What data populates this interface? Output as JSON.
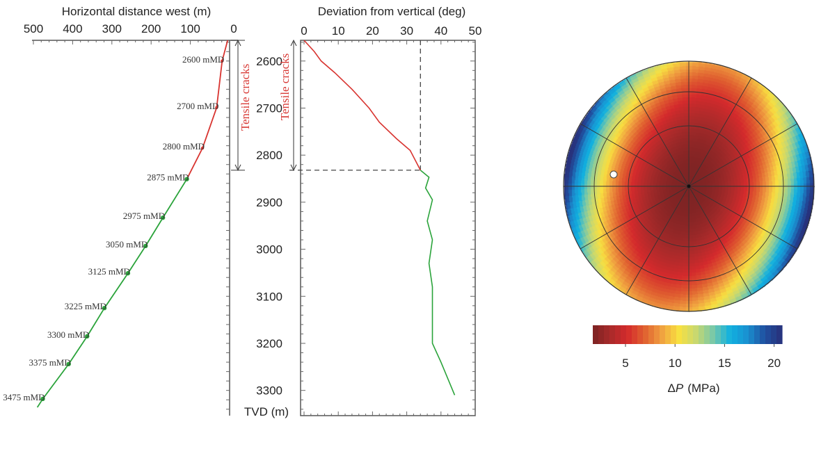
{
  "chart_data": [
    {
      "type": "line",
      "xlabel": "Horizontal distance west (m)",
      "xlim": [
        500,
        0
      ],
      "xticks": [
        "500",
        "400",
        "300",
        "200",
        "100",
        "0"
      ],
      "ylim": [
        2556,
        3355
      ],
      "y_inverted": true,
      "grid": false,
      "annotation": "Tensile cracks",
      "annotation_range_tvd": [
        2556,
        2832
      ],
      "series": [
        {
          "color": "#d8332f",
          "points": [
            [
              5,
              2556
            ],
            [
              19,
              2600
            ],
            [
              33,
              2699
            ],
            [
              69,
              2785
            ],
            [
              109,
              2851
            ]
          ]
        },
        {
          "color": "#2aa33a",
          "points": [
            [
              109,
              2851
            ],
            [
              170,
              2933
            ],
            [
              214,
              2993
            ],
            [
              259,
              3051
            ],
            [
              319,
              3125
            ],
            [
              363,
              3185
            ],
            [
              410,
              3244
            ],
            [
              476,
              3318
            ],
            [
              490,
              3336
            ]
          ]
        }
      ],
      "markers": [
        {
          "label": "2600  mMD",
          "x": 19,
          "y": 2600,
          "color": "#d8332f"
        },
        {
          "label": "2700 mMD",
          "x": 33,
          "y": 2699,
          "color": "#d8332f"
        },
        {
          "label": "2800  mMD",
          "x": 69,
          "y": 2785,
          "color": "#d8332f"
        },
        {
          "label": "2875  mMD",
          "x": 109,
          "y": 2851,
          "color": "#2aa33a"
        },
        {
          "label": "2975  mMD",
          "x": 170,
          "y": 2933,
          "color": "#2aa33a"
        },
        {
          "label": "3050  mMD",
          "x": 214,
          "y": 2993,
          "color": "#2aa33a"
        },
        {
          "label": "3125 mMD",
          "x": 259,
          "y": 3051,
          "color": "#2aa33a"
        },
        {
          "label": "3225 mMD",
          "x": 319,
          "y": 3125,
          "color": "#2aa33a"
        },
        {
          "label": "3300  mMD",
          "x": 363,
          "y": 3185,
          "color": "#2aa33a"
        },
        {
          "label": "3375  mMD",
          "x": 410,
          "y": 3244,
          "color": "#2aa33a"
        },
        {
          "label": "3475 mMD",
          "x": 476,
          "y": 3318,
          "color": "#2aa33a"
        }
      ]
    },
    {
      "type": "line",
      "xlabel": "Deviation from vertical (deg)",
      "ylabel": "TVD (m)",
      "xlim": [
        0,
        50
      ],
      "xticks": [
        "0",
        "10",
        "20",
        "30",
        "40",
        "50"
      ],
      "ylim": [
        2556,
        3355
      ],
      "y_inverted": true,
      "yticks": [
        "2600",
        "2700",
        "2800",
        "2900",
        "3000",
        "3100",
        "3200",
        "3300"
      ],
      "grid": false,
      "annotation": "Tensile cracks",
      "dashed_reference": {
        "deviation": 34,
        "tvd": 2832
      },
      "series": [
        {
          "color": "#d8332f",
          "points": [
            [
              0,
              2556
            ],
            [
              3,
              2580
            ],
            [
              5,
              2600
            ],
            [
              9,
              2625
            ],
            [
              14,
              2660
            ],
            [
              19,
              2700
            ],
            [
              22,
              2730
            ],
            [
              27,
              2765
            ],
            [
              31,
              2790
            ],
            [
              34,
              2832
            ]
          ]
        },
        {
          "color": "#2aa33a",
          "points": [
            [
              34,
              2832
            ],
            [
              36.5,
              2847
            ],
            [
              35.5,
              2870
            ],
            [
              37.5,
              2895
            ],
            [
              36,
              2940
            ],
            [
              37.5,
              2980
            ],
            [
              36.5,
              3030
            ],
            [
              37.5,
              3080
            ],
            [
              37.5,
              3130
            ],
            [
              37.5,
              3200
            ],
            [
              40,
              3240
            ],
            [
              44,
              3310
            ]
          ]
        }
      ]
    },
    {
      "type": "heatmap",
      "projection": "polar (stereonet)",
      "rings": 3,
      "spokes_deg": 30,
      "value_range": [
        1.7,
        20.8
      ],
      "marker": "open white circle",
      "colorbar": {
        "ticks": [
          "5",
          "10",
          "15",
          "20"
        ],
        "label_symbol": "Δ",
        "label_var": "P",
        "label_unit": "(MPa)",
        "colors": [
          "#7b2323",
          "#a82a2a",
          "#d42a2c",
          "#e06030",
          "#f0a040",
          "#f8e040",
          "#c8d870",
          "#78c8a8",
          "#10b0e0",
          "#1a90d0",
          "#2050a0",
          "#28307a"
        ]
      }
    }
  ]
}
